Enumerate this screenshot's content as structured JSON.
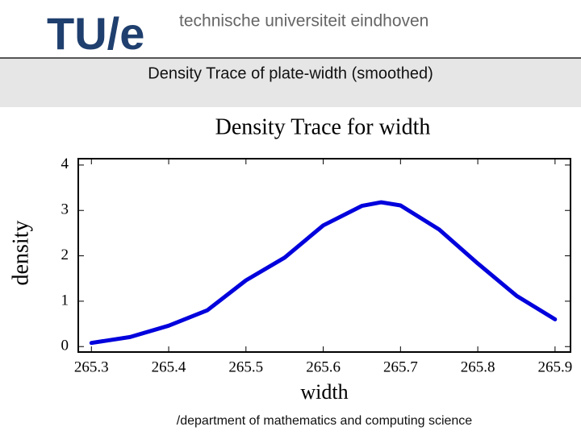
{
  "slide": {
    "logo": "TU/e",
    "institution": "technische universiteit eindhoven",
    "heading": "Density Trace of plate-width (smoothed)",
    "footer": "/department of mathematics and computing science"
  },
  "chart_data": {
    "type": "line",
    "title": "Density Trace for width",
    "x_label": "width",
    "y_label": "density",
    "x": [
      265.3,
      265.35,
      265.4,
      265.45,
      265.5,
      265.55,
      265.6,
      265.65,
      265.675,
      265.7,
      265.75,
      265.8,
      265.85,
      265.9
    ],
    "values": [
      0.08,
      0.21,
      0.46,
      0.8,
      1.46,
      1.96,
      2.67,
      3.1,
      3.18,
      3.11,
      2.58,
      1.83,
      1.12,
      0.6
    ],
    "color": "#0000dd",
    "xlim": [
      265.283,
      265.92
    ],
    "xticks": [
      265.3,
      265.4,
      265.5,
      265.6,
      265.7,
      265.8,
      265.9
    ],
    "ylim": [
      -0.12,
      4.14
    ],
    "yticks": [
      0,
      1,
      2,
      3,
      4
    ]
  }
}
